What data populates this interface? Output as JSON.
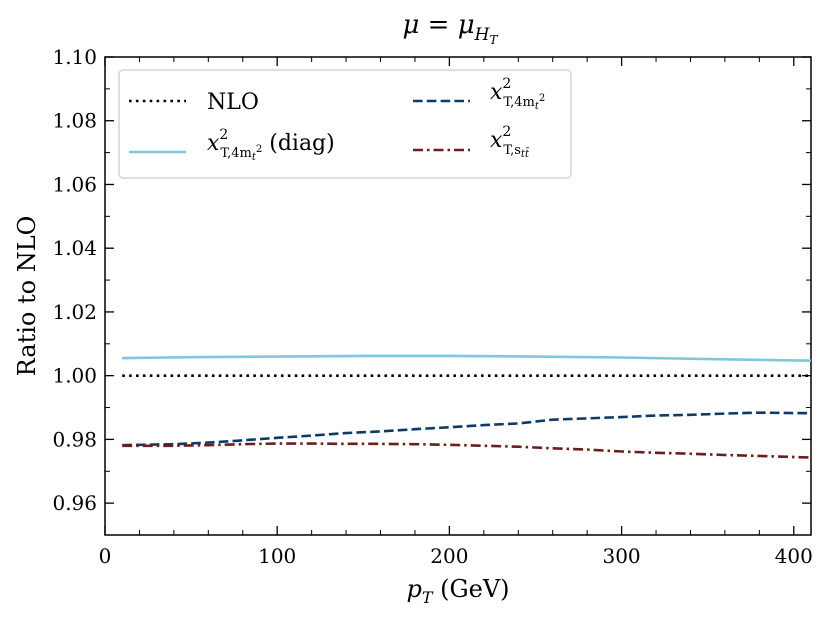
{
  "chart_data": {
    "type": "line",
    "title": "μ = μ_{H_T}",
    "title_parts": {
      "lhs": "μ",
      "eq": " = ",
      "rhs": "μ",
      "sub": "H",
      "subsub": "T"
    },
    "xlabel": "p_T (GeV)",
    "xlabel_parts": {
      "var": "p",
      "sub": "T",
      "unit": " (GeV)"
    },
    "ylabel": "Ratio to NLO",
    "xlim": [
      0,
      410
    ],
    "ylim": [
      0.95,
      1.1
    ],
    "x_ticks": [
      0,
      100,
      200,
      300,
      400
    ],
    "x_tick_labels": [
      "0",
      "100",
      "200",
      "300",
      "400"
    ],
    "y_ticks": [
      0.96,
      0.98,
      1.0,
      1.02,
      1.04,
      1.06,
      1.08,
      1.1
    ],
    "y_tick_labels": [
      "0.96",
      "0.98",
      "1.00",
      "1.02",
      "1.04",
      "1.06",
      "1.08",
      "1.10"
    ],
    "grid": false,
    "legend_position": "top-left",
    "series": [
      {
        "name": "NLO",
        "color": "#000000",
        "style": "dotted",
        "x": [
          10,
          410
        ],
        "y": [
          1.0,
          1.0
        ]
      },
      {
        "name": "x²_{T,4m_t²} (diag)",
        "legend_parts": {
          "var": "x",
          "sup": "2",
          "sub": "T,4m",
          "subsub": "t",
          "subsup": "2",
          "suffix": " (diag)"
        },
        "color": "#7ec8df",
        "style": "solid",
        "x": [
          10,
          50,
          100,
          150,
          200,
          250,
          300,
          350,
          410
        ],
        "y": [
          1.0055,
          1.0058,
          1.006,
          1.0062,
          1.0062,
          1.006,
          1.0057,
          1.0052,
          1.0047
        ]
      },
      {
        "name": "x²_{T,4m_t²}",
        "legend_parts": {
          "var": "x",
          "sup": "2",
          "sub": "T,4m",
          "subsub": "t",
          "subsup": "2",
          "suffix": ""
        },
        "color": "#0d3b66",
        "style": "dashed",
        "x": [
          10,
          40,
          60,
          80,
          100,
          120,
          140,
          160,
          180,
          200,
          220,
          240,
          260,
          280,
          300,
          320,
          340,
          360,
          380,
          410
        ],
        "y": [
          0.9782,
          0.9785,
          0.979,
          0.9797,
          0.9805,
          0.9812,
          0.982,
          0.9825,
          0.9832,
          0.9838,
          0.9845,
          0.985,
          0.9862,
          0.9866,
          0.987,
          0.9875,
          0.9877,
          0.9881,
          0.9884,
          0.9882
        ]
      },
      {
        "name": "x²_{T,s_tt̄}",
        "legend_parts": {
          "var": "x",
          "sup": "2",
          "sub": "T,s",
          "subsub": "tt̄",
          "subsup": "",
          "suffix": ""
        },
        "color": "#6b1e1e",
        "style": "dashdot",
        "x": [
          10,
          40,
          60,
          80,
          100,
          120,
          140,
          160,
          180,
          200,
          220,
          240,
          260,
          280,
          300,
          320,
          340,
          360,
          380,
          410
        ],
        "y": [
          0.978,
          0.978,
          0.9782,
          0.9785,
          0.9787,
          0.9787,
          0.9786,
          0.9786,
          0.9785,
          0.9783,
          0.978,
          0.9777,
          0.9772,
          0.9768,
          0.9762,
          0.9758,
          0.9755,
          0.9751,
          0.9748,
          0.9743
        ]
      }
    ]
  }
}
